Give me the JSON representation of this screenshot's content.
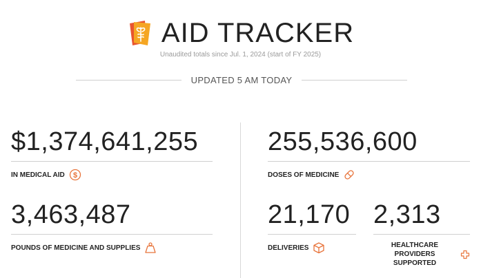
{
  "header": {
    "title": "AID TRACKER",
    "subtitle": "Unaudited totals since Jul. 1, 2024 (start of FY 2025)",
    "logo_icon": "aid-tracker-logo-icon"
  },
  "updated": {
    "text": "UPDATED 5 AM TODAY"
  },
  "colors": {
    "accent": "#e8743b",
    "logo_orange": "#f0962c",
    "logo_red": "#e8552f"
  },
  "stats": [
    {
      "value": "$1,374,641,255",
      "label": "IN MEDICAL AID",
      "icon": "dollar-circle-icon"
    },
    {
      "value": "255,536,600",
      "label": "DOSES OF MEDICINE",
      "icon": "pill-icon"
    },
    {
      "value": "3,463,487",
      "label": "POUNDS OF MEDICINE AND SUPPLIES",
      "icon": "weight-icon"
    },
    {
      "value": "21,170",
      "label": "DELIVERIES",
      "icon": "box-icon"
    },
    {
      "value": "2,313",
      "label_line1": "HEALTHCARE PROVIDERS",
      "label_line2": "SUPPORTED",
      "icon": "medical-cross-icon"
    }
  ]
}
